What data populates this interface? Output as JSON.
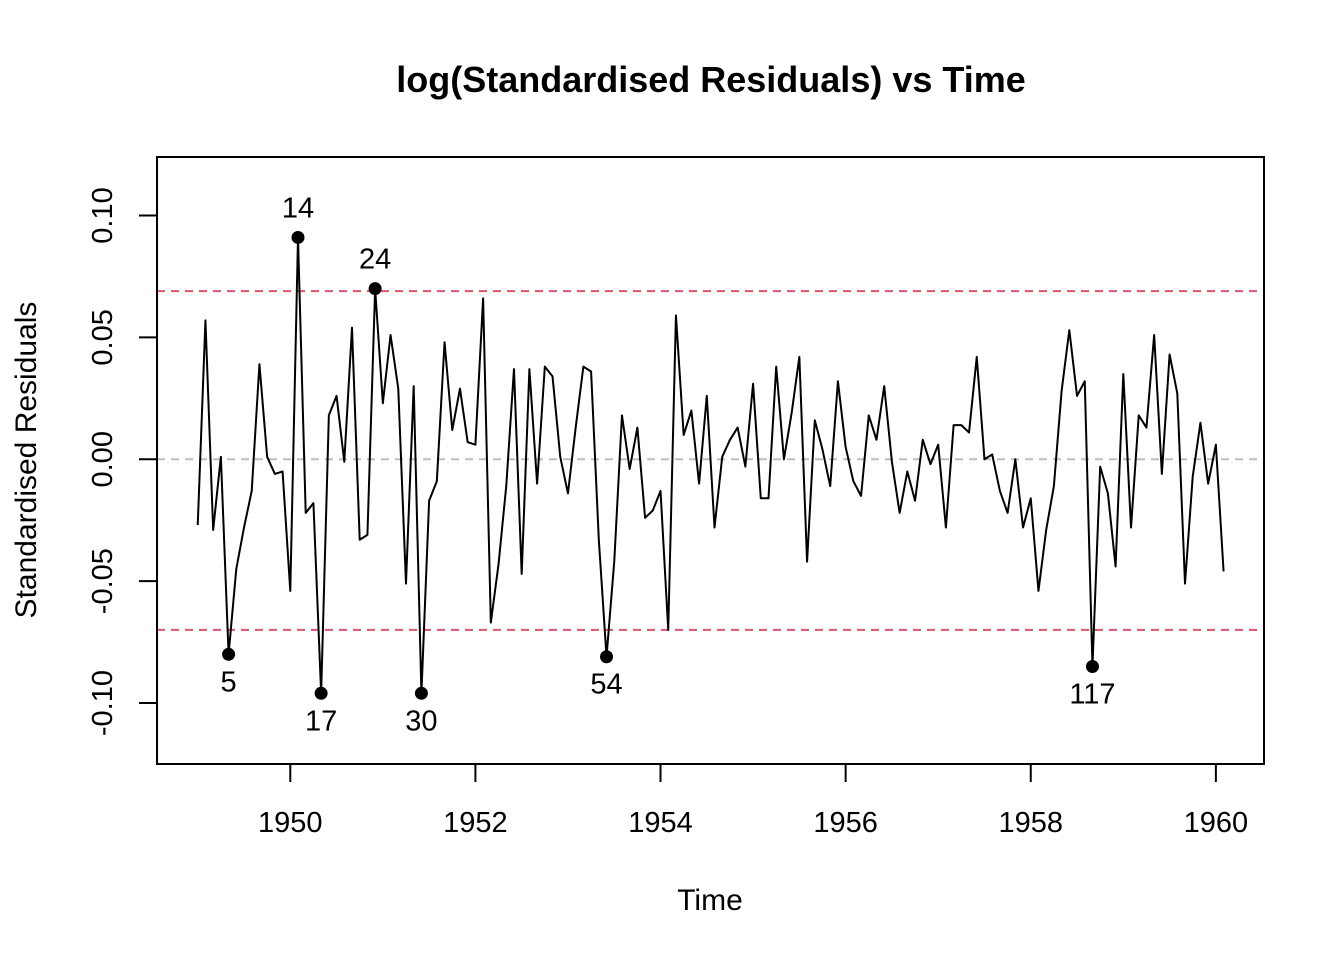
{
  "chart_data": {
    "type": "line",
    "title": "log(Standardised Residuals) vs Time",
    "xlabel": "Time",
    "ylabel": "Standardised Residuals",
    "xlim": [
      1948.56,
      1960.52
    ],
    "ylim": [
      -0.125,
      0.124
    ],
    "x_ticks": [
      1950,
      1952,
      1954,
      1956,
      1958,
      1960
    ],
    "x_tick_labels": [
      "1950",
      "1952",
      "1954",
      "1956",
      "1958",
      "1960"
    ],
    "y_ticks": [
      -0.1,
      -0.05,
      0.0,
      0.05,
      0.1
    ],
    "y_tick_labels": [
      "-0.10",
      "-0.05",
      "0.00",
      "0.05",
      "0.10"
    ],
    "grid": false,
    "reference_lines": [
      {
        "y": 0.069,
        "style": "dashed",
        "color": "#DF536B"
      },
      {
        "y": -0.07,
        "style": "dashed",
        "color": "#DF536B"
      },
      {
        "y": 0.0,
        "style": "dashed",
        "color": "#BEBEBE"
      }
    ],
    "series": [
      {
        "x_start": 1949.0,
        "x_step": 0.083333,
        "color": "#000000",
        "values": [
          -0.027,
          0.057,
          -0.029,
          0.001,
          -0.08,
          -0.045,
          -0.028,
          -0.013,
          0.039,
          0.001,
          -0.006,
          -0.005,
          -0.054,
          0.091,
          -0.022,
          -0.018,
          -0.096,
          0.018,
          0.026,
          -0.001,
          0.054,
          -0.033,
          -0.031,
          0.07,
          0.023,
          0.051,
          0.029,
          -0.051,
          0.03,
          -0.096,
          -0.017,
          -0.009,
          0.048,
          0.012,
          0.029,
          0.007,
          0.006,
          0.066,
          -0.067,
          -0.043,
          -0.011,
          0.037,
          -0.047,
          0.037,
          -0.01,
          0.038,
          0.034,
          0.001,
          -0.014,
          0.013,
          0.038,
          0.036,
          -0.033,
          -0.081,
          -0.042,
          0.018,
          -0.004,
          0.013,
          -0.024,
          -0.021,
          -0.013,
          -0.07,
          0.059,
          0.01,
          0.02,
          -0.01,
          0.026,
          -0.028,
          0.001,
          0.008,
          0.013,
          -0.003,
          0.031,
          -0.016,
          -0.016,
          0.038,
          0.0,
          0.019,
          0.042,
          -0.042,
          0.016,
          0.004,
          -0.011,
          0.032,
          0.005,
          -0.009,
          -0.015,
          0.018,
          0.008,
          0.03,
          -0.001,
          -0.022,
          -0.005,
          -0.017,
          0.008,
          -0.002,
          0.006,
          -0.028,
          0.014,
          0.014,
          0.011,
          0.042,
          0.0,
          0.002,
          -0.013,
          -0.022,
          0.0,
          -0.028,
          -0.016,
          -0.054,
          -0.029,
          -0.011,
          0.028,
          0.053,
          0.026,
          0.032,
          -0.085,
          -0.003,
          -0.014,
          -0.044,
          0.035,
          -0.028,
          0.018,
          0.013,
          0.051,
          -0.006,
          0.043,
          0.027,
          -0.051,
          -0.007,
          0.015,
          -0.01,
          0.006,
          -0.046
        ]
      }
    ],
    "highlighted_points": [
      {
        "label": "5",
        "index": 5,
        "value": -0.08
      },
      {
        "label": "14",
        "index": 14,
        "value": 0.091
      },
      {
        "label": "17",
        "index": 17,
        "value": -0.096
      },
      {
        "label": "24",
        "index": 24,
        "value": 0.07
      },
      {
        "label": "30",
        "index": 30,
        "value": -0.096
      },
      {
        "label": "54",
        "index": 54,
        "value": -0.081
      },
      {
        "label": "117",
        "index": 117,
        "value": -0.085
      }
    ]
  }
}
